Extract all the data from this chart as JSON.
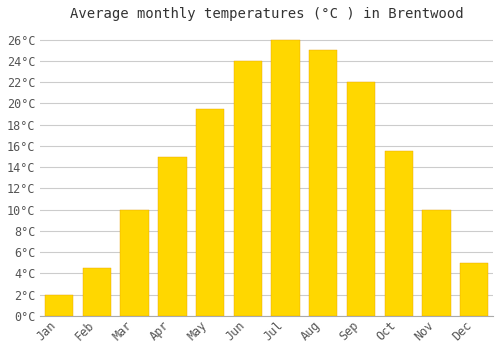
{
  "title": "Average monthly temperatures (°C ) in Brentwood",
  "months": [
    "Jan",
    "Feb",
    "Mar",
    "Apr",
    "May",
    "Jun",
    "Jul",
    "Aug",
    "Sep",
    "Oct",
    "Nov",
    "Dec"
  ],
  "temperatures": [
    2,
    4.5,
    10,
    15,
    19.5,
    24,
    26,
    25,
    22,
    15.5,
    10,
    5
  ],
  "bar_color_top": "#FFBB33",
  "bar_color_bottom": "#FFD700",
  "bar_edge_color": "#E8A000",
  "ylim": [
    0,
    27
  ],
  "yticks": [
    0,
    2,
    4,
    6,
    8,
    10,
    12,
    14,
    16,
    18,
    20,
    22,
    24,
    26
  ],
  "background_color": "#FFFFFF",
  "plot_bg_color": "#FFFFFF",
  "grid_color": "#CCCCCC",
  "title_fontsize": 10,
  "tick_fontsize": 8.5,
  "font_family": "monospace"
}
